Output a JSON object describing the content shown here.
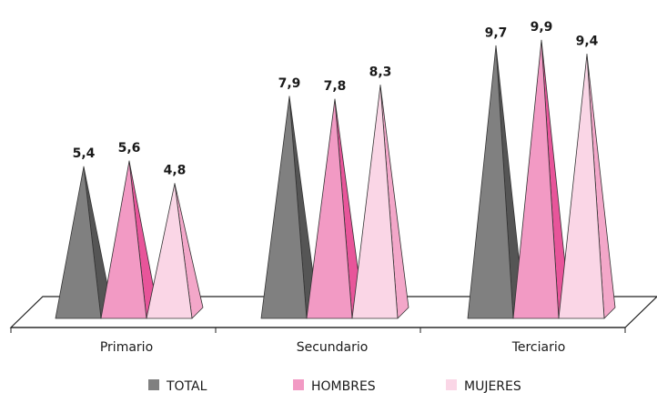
{
  "chart_data": {
    "type": "bar",
    "style": "3d-pyramid",
    "categories": [
      "Primario",
      "Secundario",
      "Terciario"
    ],
    "series": [
      {
        "name": "TOTAL",
        "values": [
          5.4,
          7.9,
          9.7
        ],
        "labels": [
          "5,4",
          "7,9",
          "9,7"
        ],
        "color": "#808080",
        "side_color": "#555555"
      },
      {
        "name": "HOMBRES",
        "values": [
          5.6,
          7.8,
          9.9
        ],
        "labels": [
          "5,6",
          "7,8",
          "9,9"
        ],
        "color": "#f29ac4",
        "side_color": "#e8559a"
      },
      {
        "name": "MUJERES",
        "values": [
          4.8,
          8.3,
          9.4
        ],
        "labels": [
          "4,8",
          "8,3",
          "9,4"
        ],
        "color": "#fad6e6",
        "side_color": "#f3a7c9"
      }
    ],
    "title": "",
    "xlabel": "",
    "ylabel": "",
    "ylim": [
      0,
      10
    ],
    "grid": false,
    "legend": "bottom"
  }
}
